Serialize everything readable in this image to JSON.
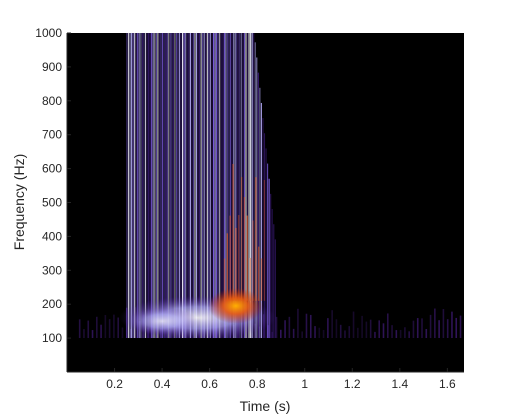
{
  "chart_data": {
    "type": "heatmap",
    "title": "",
    "xlabel": "Time (s)",
    "ylabel": "Frequency (Hz)",
    "xlim": [
      0.0,
      1.67
    ],
    "ylim": [
      0,
      1000
    ],
    "x_ticks": [
      0.2,
      0.4,
      0.6,
      0.8,
      1.0,
      1.2,
      1.4,
      1.6
    ],
    "x_tick_labels": [
      "0.2",
      "0.4",
      "0.6",
      "0.8",
      "1",
      "1.2",
      "1.4",
      "1.6"
    ],
    "y_ticks": [
      100,
      200,
      300,
      400,
      500,
      600,
      700,
      800,
      900,
      1000
    ],
    "y_tick_labels": [
      "100",
      "200",
      "300",
      "400",
      "500",
      "600",
      "700",
      "800",
      "900",
      "1000"
    ],
    "grid": false,
    "colormap": [
      "#000000",
      "#2a0a55",
      "#5a2fb0",
      "#9f8cf0",
      "#eef0ff",
      "#ffd07a",
      "#e85a10",
      "#b81c00"
    ],
    "background_color": "#000000",
    "energy_band": {
      "time_range": [
        0.25,
        0.88
      ],
      "freq_range": [
        100,
        1000
      ]
    },
    "peak_region": {
      "time_range": [
        0.62,
        0.8
      ],
      "freq_range": [
        170,
        220
      ],
      "level": "max"
    }
  }
}
